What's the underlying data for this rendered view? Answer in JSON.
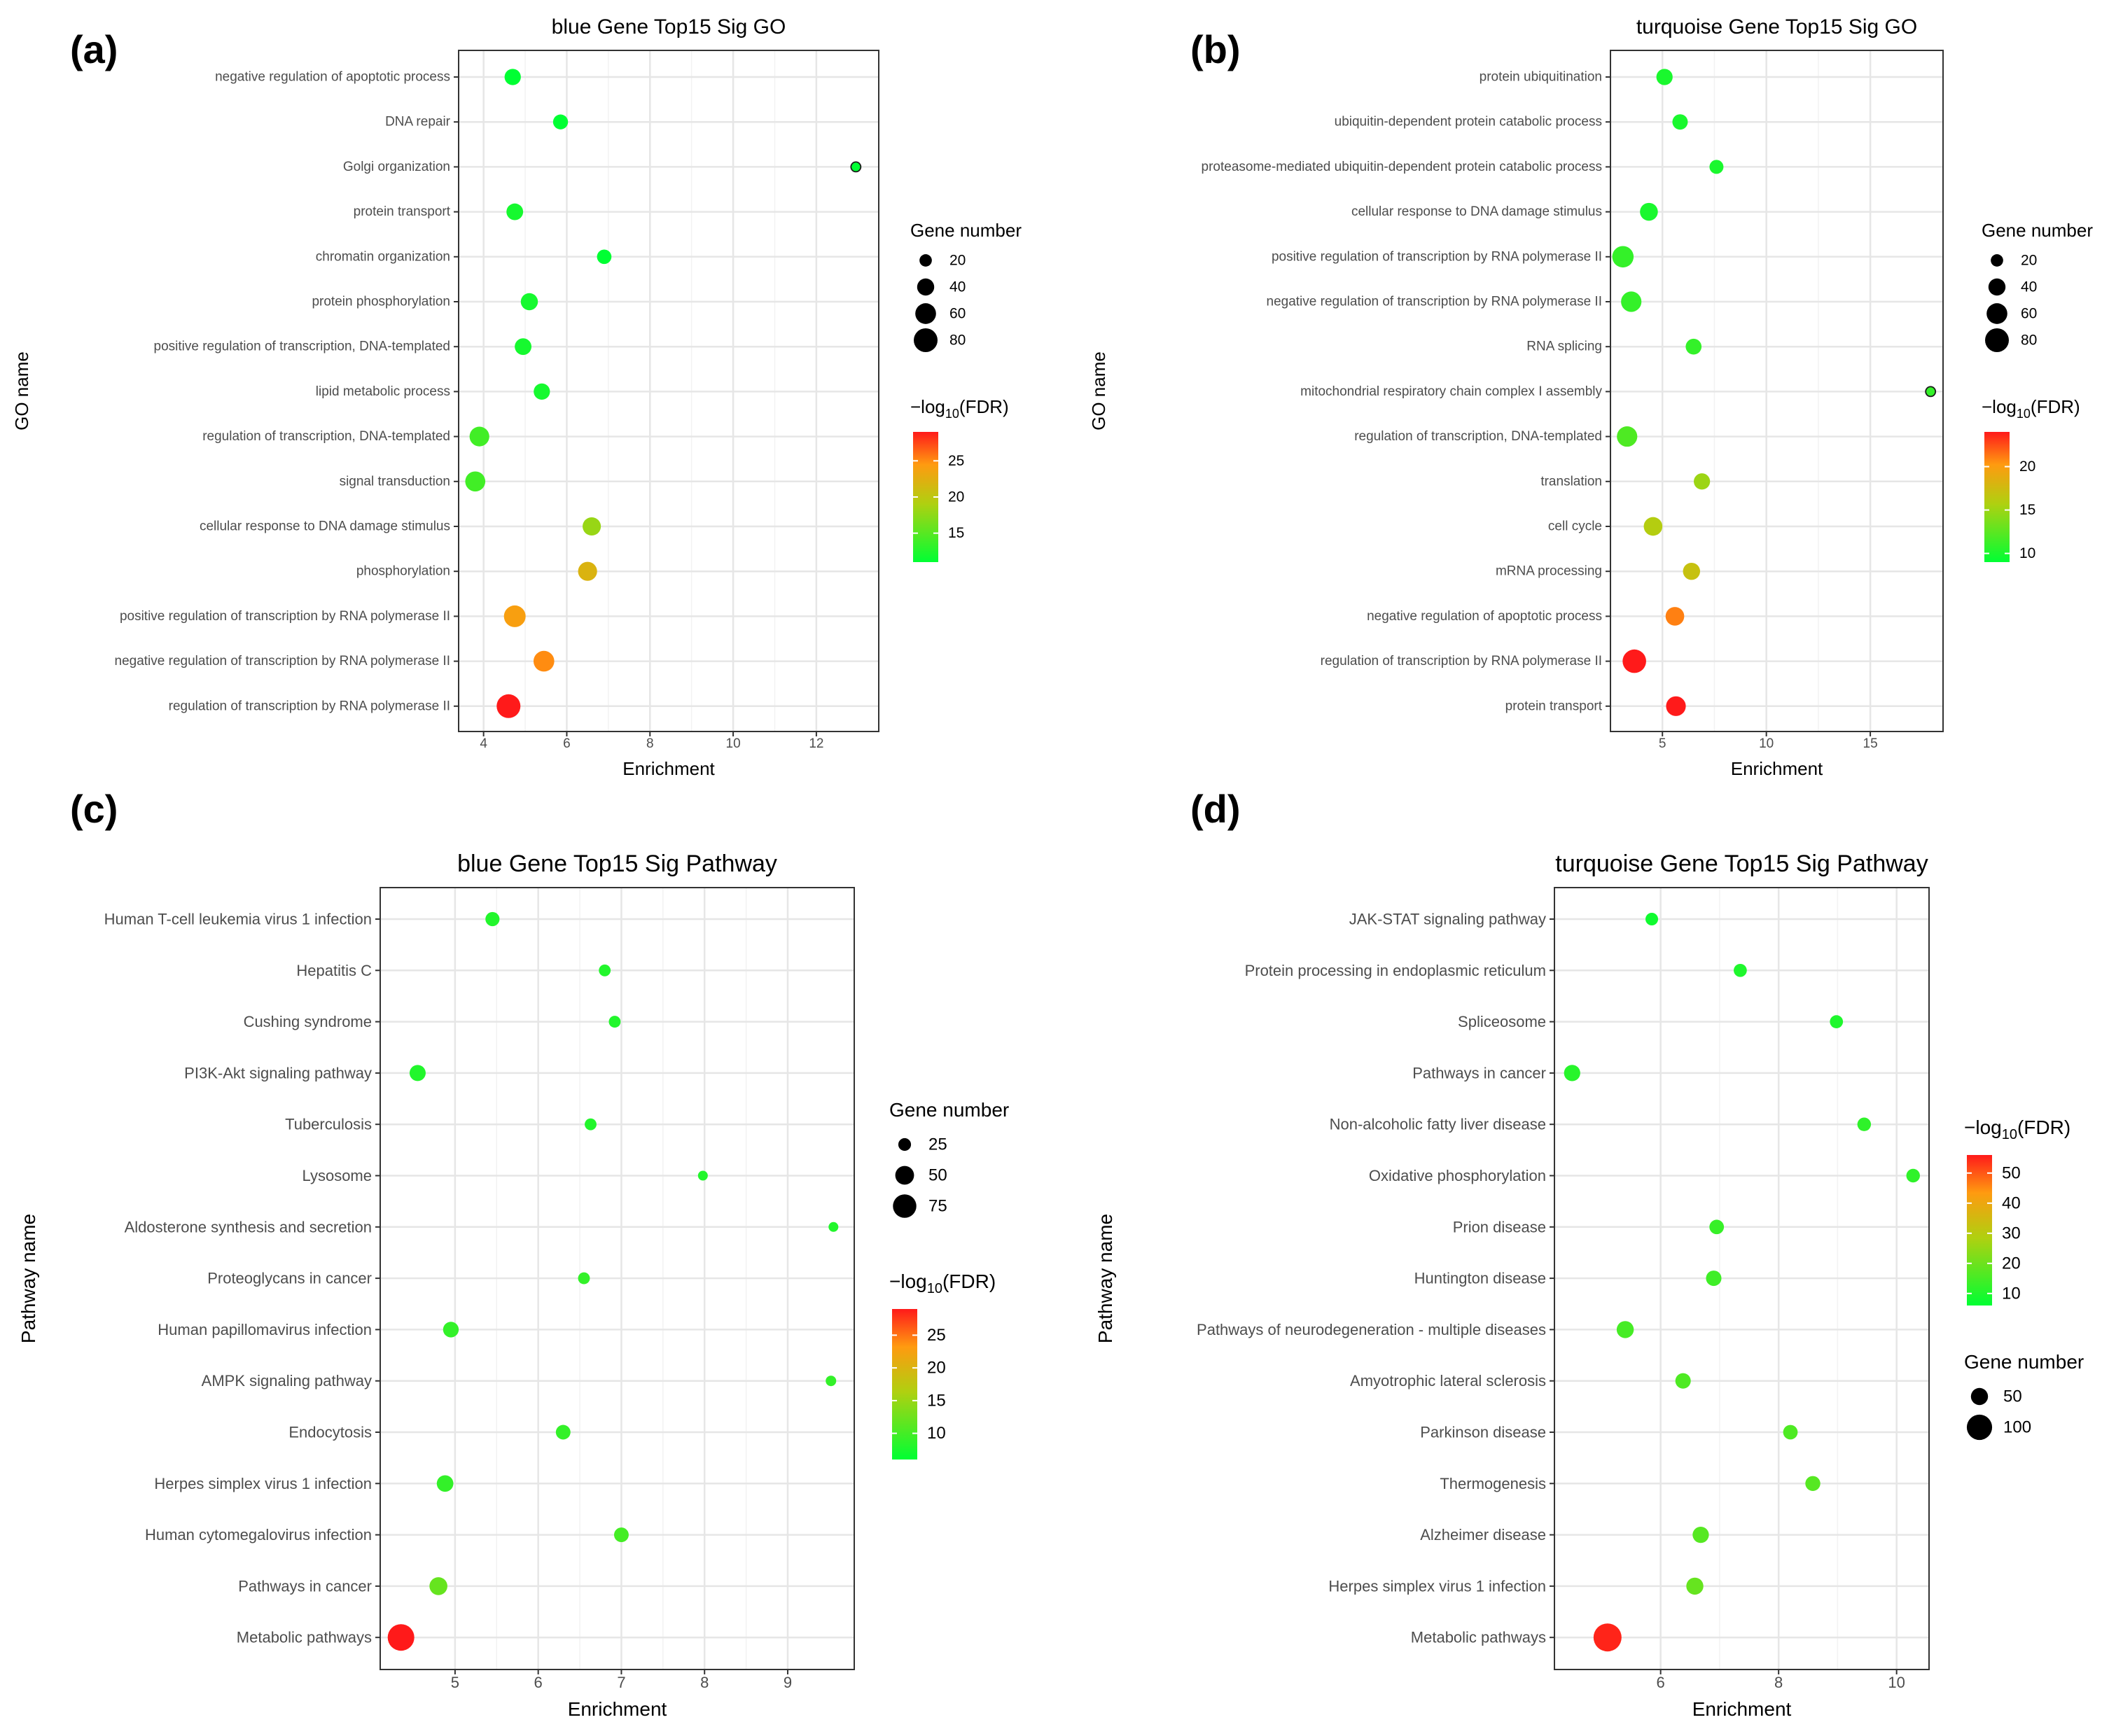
{
  "figure_type": "bubble-chart-grid",
  "chart_data": [
    {
      "type": "scatter",
      "panel_label": "(a)",
      "title": "blue Gene Top15 Sig GO",
      "xlabel": "Enrichment",
      "ylabel": "GO name",
      "xlim": [
        3.4,
        13.5
      ],
      "xticks": [
        4,
        6,
        8,
        10,
        12
      ],
      "categories": [
        "negative regulation of apoptotic process",
        "DNA repair",
        "Golgi organization",
        "protein transport",
        "chromatin organization",
        "protein phosphorylation",
        "positive regulation of transcription, DNA-templated",
        "lipid metabolic process",
        "regulation of transcription, DNA-templated",
        "signal transduction",
        "cellular response to DNA damage stimulus",
        "phosphorylation",
        "positive regulation of transcription by RNA polymerase II",
        "negative regulation of transcription by RNA polymerase II",
        "regulation of transcription by RNA polymerase II"
      ],
      "enrichment": [
        4.7,
        5.85,
        12.95,
        4.75,
        6.9,
        5.1,
        4.95,
        5.4,
        3.9,
        3.8,
        6.6,
        6.5,
        4.75,
        5.45,
        4.6
      ],
      "gene_number": [
        36,
        30,
        12,
        38,
        28,
        40,
        38,
        36,
        54,
        56,
        46,
        50,
        66,
        60,
        80
      ],
      "neg_log10_fdr": [
        11,
        11,
        11,
        12,
        11,
        12,
        12,
        12,
        14,
        14,
        18,
        22,
        24,
        25,
        29
      ],
      "size_legend": {
        "title": "Gene number",
        "values": [
          20,
          40,
          60,
          80
        ],
        "labels": [
          "20",
          "40",
          "60",
          "80"
        ]
      },
      "color_legend": {
        "title_prefix": "−log",
        "title_sub": "10",
        "title_suffix": "(FDR)",
        "min": 11,
        "max": 29,
        "ticks": [
          15,
          20,
          25
        ],
        "labels": [
          "15",
          "20",
          "25"
        ]
      },
      "legend_order": "size-first"
    },
    {
      "type": "scatter",
      "panel_label": "(b)",
      "title": "turquoise Gene Top15 Sig GO",
      "xlabel": "Enrichment",
      "ylabel": "GO name",
      "xlim": [
        2.5,
        18.5
      ],
      "xticks": [
        5,
        10,
        15
      ],
      "categories": [
        "protein ubiquitination",
        "ubiquitin-dependent protein catabolic process",
        "proteasome-mediated ubiquitin-dependent protein catabolic process",
        "cellular response to DNA damage stimulus",
        "positive regulation of transcription by RNA polymerase II",
        "negative regulation of transcription by RNA polymerase II",
        "RNA splicing",
        "mitochondrial respiratory chain complex I assembly",
        "regulation of transcription, DNA-templated",
        "translation",
        "cell cycle",
        "mRNA processing",
        "negative regulation of apoptotic process",
        "regulation of transcription by RNA polymerase II",
        "protein transport"
      ],
      "enrichment": [
        5.1,
        5.85,
        7.6,
        4.35,
        3.1,
        3.5,
        6.5,
        17.9,
        3.3,
        6.9,
        4.55,
        6.4,
        5.6,
        3.65,
        5.65
      ],
      "gene_number": [
        36,
        32,
        26,
        44,
        64,
        58,
        34,
        12,
        58,
        36,
        48,
        40,
        48,
        78,
        54
      ],
      "neg_log10_fdr": [
        10,
        10,
        10,
        10,
        11,
        11,
        11,
        11,
        12,
        15,
        16,
        17,
        21,
        24,
        24
      ],
      "size_legend": {
        "title": "Gene number",
        "values": [
          20,
          40,
          60,
          80
        ],
        "labels": [
          "20",
          "40",
          "60",
          "80"
        ]
      },
      "color_legend": {
        "title_prefix": "−log",
        "title_sub": "10",
        "title_suffix": "(FDR)",
        "min": 9,
        "max": 24,
        "ticks": [
          10,
          15,
          20
        ],
        "labels": [
          "10",
          "15",
          "20"
        ]
      },
      "legend_order": "size-first"
    },
    {
      "type": "scatter",
      "panel_label": "(c)",
      "title": "blue Gene Top15 Sig Pathway",
      "xlabel": "Enrichment",
      "ylabel": "Pathway name",
      "xlim": [
        4.1,
        9.8
      ],
      "xticks": [
        5,
        6,
        7,
        8,
        9
      ],
      "categories": [
        "Human T-cell leukemia virus 1 infection",
        "Hepatitis C",
        "Cushing syndrome",
        "PI3K-Akt signaling pathway",
        "Tuberculosis",
        "Lysosome",
        "Aldosterone synthesis and secretion",
        "Proteoglycans in cancer",
        "Human papillomavirus infection",
        "AMPK signaling pathway",
        "Endocytosis",
        "Herpes simplex virus 1 infection",
        "Human cytomegalovirus infection",
        "Pathways in cancer",
        "Metabolic pathways"
      ],
      "enrichment": [
        5.45,
        6.8,
        6.92,
        4.55,
        6.63,
        7.98,
        9.55,
        6.55,
        4.95,
        9.52,
        6.3,
        4.88,
        7.0,
        4.8,
        4.35
      ],
      "gene_number": [
        30,
        22,
        22,
        38,
        22,
        16,
        16,
        22,
        36,
        18,
        32,
        40,
        32,
        46,
        95
      ],
      "neg_log10_fdr": [
        8,
        8,
        8,
        8,
        8,
        8,
        8,
        9,
        9,
        9,
        9,
        9,
        10,
        12,
        29
      ],
      "size_legend": {
        "title": "Gene number",
        "values": [
          25,
          50,
          75
        ],
        "labels": [
          "25",
          "50",
          "75"
        ]
      },
      "color_legend": {
        "title_prefix": "−log",
        "title_sub": "10",
        "title_suffix": "(FDR)",
        "min": 6,
        "max": 29,
        "ticks": [
          10,
          15,
          20,
          25
        ],
        "labels": [
          "10",
          "15",
          "20",
          "25"
        ]
      },
      "legend_order": "size-first"
    },
    {
      "type": "scatter",
      "panel_label": "(d)",
      "title": "turquoise Gene Top15 Sig Pathway",
      "xlabel": "Enrichment",
      "ylabel": "Pathway name",
      "xlim": [
        4.2,
        10.55
      ],
      "xticks": [
        6,
        8,
        10
      ],
      "categories": [
        "JAK-STAT signaling pathway",
        "Protein processing in endoplasmic reticulum",
        "Spliceosome",
        "Pathways in cancer",
        "Non-alcoholic fatty liver disease",
        "Oxidative phosphorylation",
        "Prion disease",
        "Huntington disease",
        "Pathways of neurodegeneration - multiple diseases",
        "Amyotrophic lateral sclerosis",
        "Parkinson disease",
        "Thermogenesis",
        "Alzheimer disease",
        "Herpes simplex virus 1 infection",
        "Metabolic pathways"
      ],
      "enrichment": [
        5.85,
        7.35,
        8.98,
        4.5,
        9.45,
        10.28,
        6.95,
        6.9,
        5.4,
        6.38,
        8.2,
        8.58,
        6.68,
        6.58,
        5.1
      ],
      "gene_number": [
        30,
        32,
        32,
        46,
        34,
        34,
        38,
        42,
        50,
        42,
        38,
        40,
        46,
        50,
        120
      ],
      "neg_log10_fdr": [
        8,
        10,
        10,
        11,
        12,
        12,
        13,
        14,
        15,
        16,
        16,
        17,
        17,
        19,
        55
      ],
      "size_legend": {
        "title": "Gene number",
        "values": [
          50,
          100
        ],
        "labels": [
          "50",
          "100"
        ]
      },
      "color_legend": {
        "title_prefix": "−log",
        "title_sub": "10",
        "title_suffix": "(FDR)",
        "min": 6,
        "max": 56,
        "ticks": [
          10,
          20,
          30,
          40,
          50
        ],
        "labels": [
          "10",
          "20",
          "30",
          "40",
          "50"
        ]
      },
      "legend_order": "color-first"
    }
  ],
  "colors": {
    "low": "#00ff33",
    "mid": "#b0d010",
    "mid_high": "#ff9a10",
    "high": "#ff1a1a",
    "grid": "#e6e6e6",
    "panel_border": "#333333",
    "tick_text": "#4d4d4d",
    "tick_line": "#333333",
    "background": "#ffffff"
  }
}
